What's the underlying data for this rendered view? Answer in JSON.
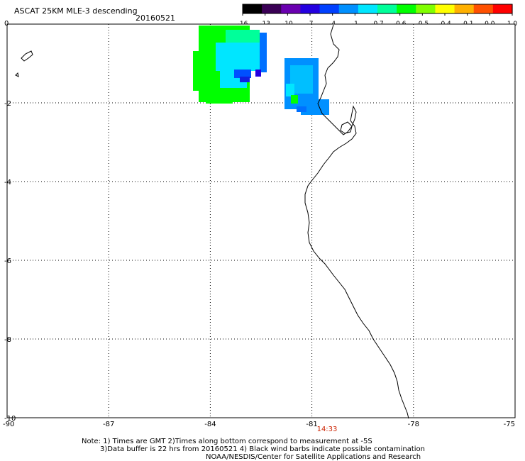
{
  "header": {
    "title": "ASCAT 25KM MLE-3 descending",
    "date": "20160521"
  },
  "colorbar": {
    "tick_labels": [
      "-16",
      "-13",
      "-10",
      "-7",
      "-4",
      "-1",
      "-0.7",
      "-0.6",
      "-0.5",
      "-0.4",
      "-0.1",
      "0.0",
      "1.0"
    ],
    "colors": [
      "#000000",
      "#3a0055",
      "#6a00b0",
      "#2400e0",
      "#0040ff",
      "#0090ff",
      "#00e6ff",
      "#00ff9a",
      "#00ff00",
      "#80ff00",
      "#ffff00",
      "#ffb000",
      "#ff5000",
      "#ff0000"
    ]
  },
  "map": {
    "lat_ticks": [
      "0",
      "-2",
      "-4",
      "-6",
      "-8",
      "-10"
    ],
    "lon_ticks": [
      "-90",
      "-87",
      "-84",
      "-81",
      "-78",
      "-75"
    ],
    "lat_range": [
      -10,
      0
    ],
    "lon_range": [
      -90,
      -75
    ],
    "time_label": "14:33",
    "time_color": "#cc2200",
    "grid": true
  },
  "footer": {
    "line1": "Note: 1) Times are GMT 2)Times along bottom correspond to measurement at -5S",
    "line2": "3)Data buffer is 22 hrs from 20160521 4) Black wind barbs indicate possible contamination",
    "line3": "NOAA/NESDIS/Center for Satellite Applications and Research"
  }
}
